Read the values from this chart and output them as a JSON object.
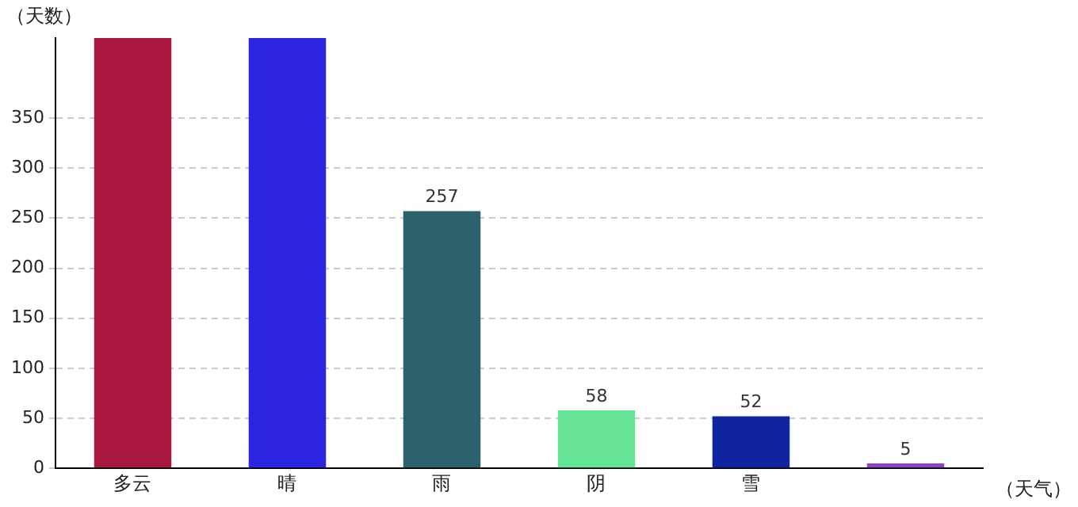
{
  "chart_data": {
    "type": "bar",
    "ylabel": "（天数）",
    "xlabel": "（天气）",
    "categories": [
      "多云",
      "晴",
      "雨",
      "阴",
      "雪",
      null
    ],
    "values": [
      430,
      430,
      257,
      58,
      52,
      5
    ],
    "colors": [
      "#a8173f",
      "#2b24e0",
      "#2c626b",
      "#66e495",
      "#0f24a0",
      "#9040c8"
    ],
    "value_labels": [
      null,
      null,
      "257",
      "58",
      "52",
      "5"
    ],
    "ylim": [
      0,
      430
    ],
    "yticks": [
      0,
      50,
      100,
      150,
      200,
      250,
      300,
      350
    ],
    "grid": "y"
  }
}
